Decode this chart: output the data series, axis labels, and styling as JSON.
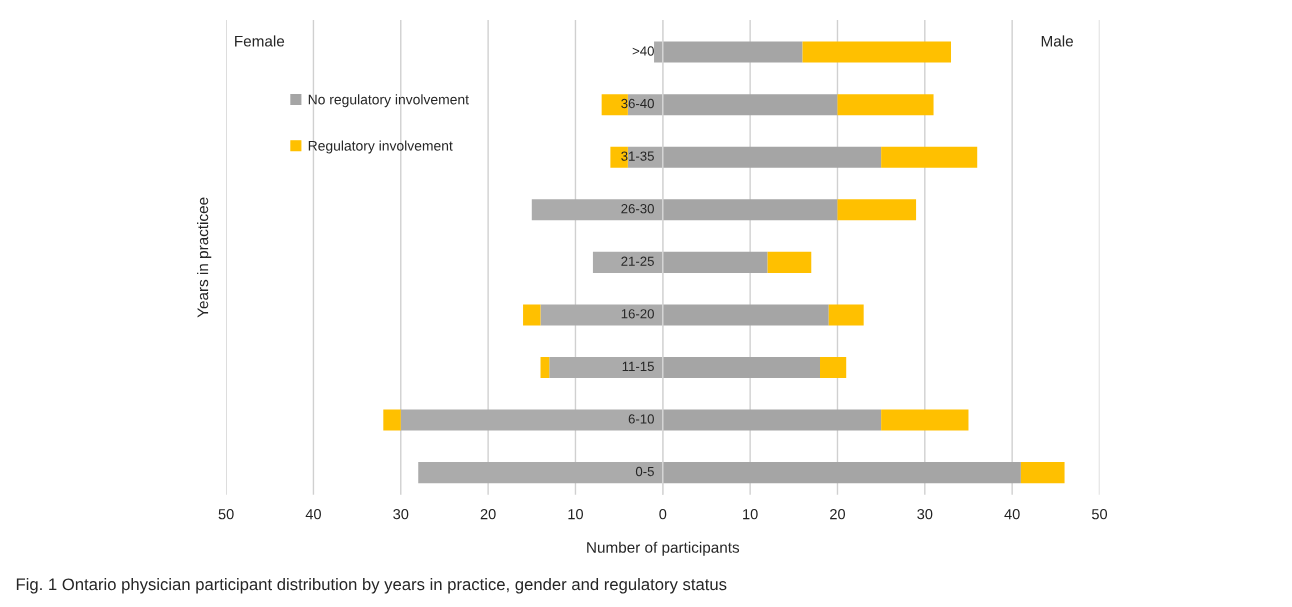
{
  "chart_data": {
    "type": "bar",
    "orientation": "horizontal",
    "stacked": true,
    "categories": [
      ">40",
      "36-40",
      "31-35",
      "26-30",
      "21-25",
      "16-20",
      "11-15",
      "6-10",
      "0-5"
    ],
    "series": [
      {
        "color": "#ababab",
        "values": [
          -1,
          -4,
          -4,
          -15,
          -8,
          -14,
          -13,
          -30,
          -28
        ]
      },
      {
        "color": "#ffc000",
        "values": [
          0,
          -3,
          -2,
          0,
          0,
          -2,
          -1,
          -2,
          0
        ]
      },
      {
        "name": "No regulatory involvement",
        "color": "#a5a5a5",
        "values": [
          16,
          20,
          25,
          20,
          12,
          19,
          18,
          25,
          41
        ]
      },
      {
        "name": "Regulatory involvement",
        "color": "#ffc000",
        "values": [
          17,
          11,
          11,
          9,
          5,
          4,
          3,
          10,
          5
        ]
      }
    ],
    "xlim": [
      -50,
      50
    ],
    "xticks": [
      {
        "value": -50,
        "label": "50"
      },
      {
        "value": -40,
        "label": "40"
      },
      {
        "value": -30,
        "label": "30"
      },
      {
        "value": -20,
        "label": "20"
      },
      {
        "value": -10,
        "label": "10"
      },
      0,
      10,
      20,
      30,
      40,
      50
    ],
    "xlabel": "Number of participants",
    "ylabel": "Years in practicee",
    "grid": "x",
    "legend": "top left",
    "annotations": [
      "Female",
      "Male",
      "Fig. 1 Ontario physician participant distribution by years in practice, gender and regulatory status"
    ]
  }
}
